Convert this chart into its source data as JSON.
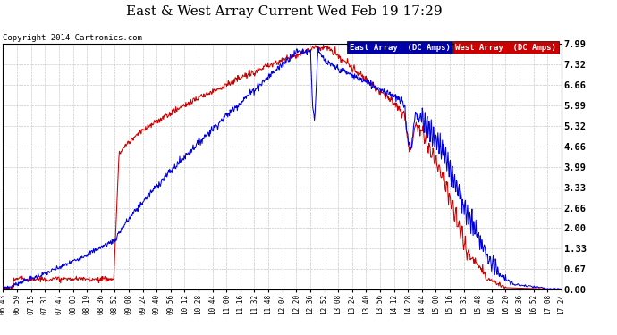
{
  "title": "East & West Array Current Wed Feb 19 17:29",
  "copyright": "Copyright 2014 Cartronics.com",
  "background_color": "#ffffff",
  "grid_color": "#bbbbbb",
  "east_color": "#0000dd",
  "west_color": "#cc0000",
  "east_label": "East Array  (DC Amps)",
  "west_label": "West Array  (DC Amps)",
  "east_legend_bg": "#0000aa",
  "west_legend_bg": "#cc0000",
  "ylim": [
    0.0,
    7.99
  ],
  "yticks": [
    0.0,
    0.67,
    1.33,
    2.0,
    2.66,
    3.33,
    3.99,
    4.66,
    5.32,
    5.99,
    6.66,
    7.32,
    7.99
  ],
  "x_labels": [
    "06:43",
    "06:59",
    "07:15",
    "07:31",
    "07:47",
    "08:03",
    "08:19",
    "08:36",
    "08:52",
    "09:08",
    "09:24",
    "09:40",
    "09:56",
    "10:12",
    "10:28",
    "10:44",
    "11:00",
    "11:16",
    "11:32",
    "11:48",
    "12:04",
    "12:20",
    "12:36",
    "12:52",
    "13:08",
    "13:24",
    "13:40",
    "13:56",
    "14:12",
    "14:28",
    "14:44",
    "15:00",
    "15:16",
    "15:32",
    "15:48",
    "16:04",
    "16:20",
    "16:36",
    "16:52",
    "17:08",
    "17:24"
  ]
}
